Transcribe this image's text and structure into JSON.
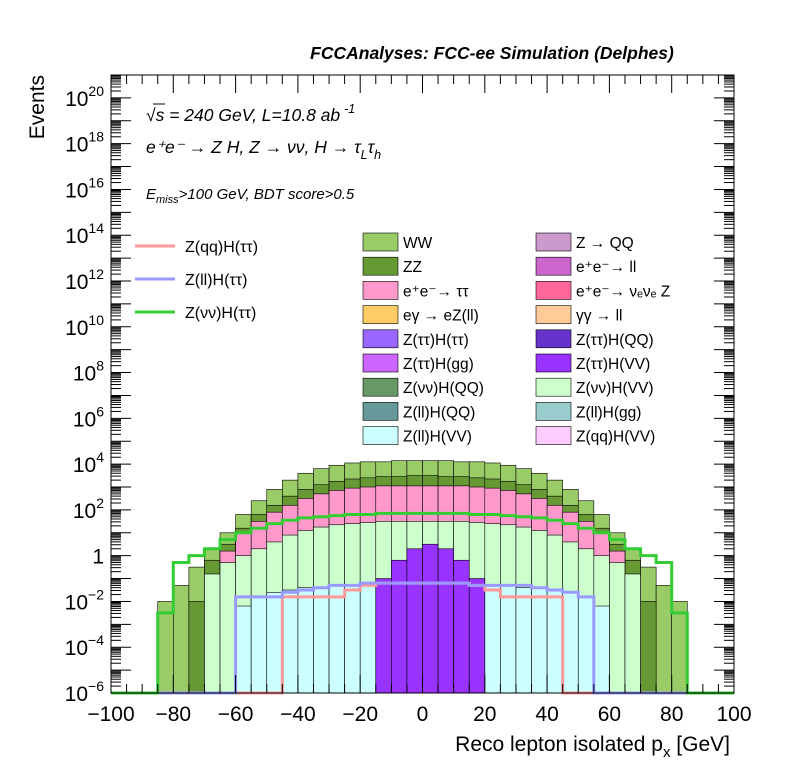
{
  "chart_data": {
    "type": "histogram",
    "title": "FCCAnalyses: FCC-ee Simulation (Delphes)",
    "xlabel": "Reco lepton isolated p",
    "xlabel_sub": "x",
    "xlabel_unit": " [GeV]",
    "ylabel": "Events",
    "xlim": [
      -100,
      100
    ],
    "ylim_log10": [
      -6,
      21
    ],
    "yscale": "log",
    "x_ticks": [
      -100,
      -80,
      -60,
      -40,
      -20,
      0,
      20,
      40,
      60,
      80,
      100
    ],
    "x_tick_labels": [
      "−100",
      "−80",
      "−60",
      "−40",
      "−20",
      "0",
      "20",
      "40",
      "60",
      "80",
      "100"
    ],
    "y_tick_labels": [
      {
        "exp": -6,
        "base": "10",
        "sup": "−6"
      },
      {
        "exp": -4,
        "base": "10",
        "sup": "−4"
      },
      {
        "exp": -2,
        "base": "10",
        "sup": "−2"
      },
      {
        "exp": 0,
        "base": "1",
        "sup": ""
      },
      {
        "exp": 2,
        "base": "10",
        "sup": "2"
      },
      {
        "exp": 4,
        "base": "10",
        "sup": "4"
      },
      {
        "exp": 6,
        "base": "10",
        "sup": "6"
      },
      {
        "exp": 8,
        "base": "10",
        "sup": "8"
      },
      {
        "exp": 10,
        "base": "10",
        "sup": "10"
      },
      {
        "exp": 12,
        "base": "10",
        "sup": "12"
      },
      {
        "exp": 14,
        "base": "10",
        "sup": "14"
      },
      {
        "exp": 16,
        "base": "10",
        "sup": "16"
      },
      {
        "exp": 18,
        "base": "10",
        "sup": "18"
      },
      {
        "exp": 20,
        "base": "10",
        "sup": "20"
      }
    ],
    "annotations": {
      "energy": "√s = 240 GeV, L=10.8 ab",
      "energy_sup": "-1",
      "process": "e⁺e⁻ → Z H, Z → νν, H → τ",
      "process_sub1": "L",
      "process_tau": "τ",
      "process_sub2": "h",
      "cut_prefix": "E",
      "cut_sub": "miss",
      "cut_rest": ">100 GeV, BDT score>0.5"
    },
    "bin_edges_start": -100,
    "bin_width": 5,
    "stack": [
      {
        "name": "WW",
        "color": "#99cc66",
        "log10": [
          -6,
          -6,
          -6,
          -2,
          -1.3,
          -0.5,
          0.3,
          1,
          1.8,
          2.4,
          2.9,
          3.3,
          3.6,
          3.8,
          3.95,
          4.05,
          4.1,
          4.1,
          4.15,
          4.15,
          4.15,
          4.15,
          4.1,
          4.1,
          4.05,
          3.95,
          3.8,
          3.6,
          3.3,
          2.9,
          2.4,
          1.8,
          1,
          0.3,
          -0.5,
          -1.3,
          -2,
          -6,
          -6,
          -6
        ]
      },
      {
        "name": "ZZ",
        "color": "#669933",
        "log10": [
          -6,
          -6,
          -6,
          -6,
          -6,
          -2,
          -0.2,
          0.5,
          1.2,
          1.8,
          2.2,
          2.6,
          2.9,
          3.1,
          3.25,
          3.35,
          3.4,
          3.45,
          3.45,
          3.5,
          3.5,
          3.45,
          3.45,
          3.4,
          3.35,
          3.25,
          3.1,
          2.9,
          2.6,
          2.2,
          1.8,
          1.2,
          0.5,
          -0.2,
          -2,
          -6,
          -6,
          -6,
          -6,
          -6
        ]
      },
      {
        "name": "e⁺e⁻→ ττ",
        "color": "#ff99cc",
        "log10": [
          -6,
          -6,
          -6,
          -6,
          -6,
          -6,
          -1,
          0.2,
          1,
          1.5,
          1.9,
          2.2,
          2.5,
          2.7,
          2.85,
          2.95,
          3,
          3.05,
          3.05,
          3.05,
          3.05,
          3.05,
          3.05,
          3,
          2.95,
          2.85,
          2.7,
          2.5,
          2.2,
          1.9,
          1.5,
          1,
          0.2,
          -1,
          -6,
          -6,
          -6,
          -6,
          -6,
          -6
        ]
      },
      {
        "name": "Z(νν)H(VV)",
        "color": "#ccffcc",
        "log10": [
          -6,
          -6,
          -6,
          -6,
          -6,
          -6,
          -0.8,
          -0.3,
          0,
          0.3,
          0.6,
          0.9,
          1.1,
          1.25,
          1.35,
          1.4,
          1.45,
          1.5,
          1.5,
          1.5,
          1.5,
          1.5,
          1.5,
          1.45,
          1.4,
          1.35,
          1.25,
          1.1,
          0.9,
          0.6,
          0.3,
          0,
          -0.3,
          -0.8,
          -6,
          -6,
          -6,
          -6,
          -6,
          -6
        ]
      },
      {
        "name": "Z(ll)H(VV)",
        "color": "#ccffff",
        "log10": [
          -6,
          -6,
          -6,
          -6,
          -6,
          -6,
          -6,
          -6,
          -2.2,
          -1.8,
          -1.6,
          -1.5,
          -1.4,
          -1.4,
          -1.3,
          -1.3,
          -1.3,
          -1.25,
          -1.25,
          -1.25,
          -1.25,
          -1.25,
          -1.25,
          -1.3,
          -1.3,
          -1.3,
          -1.4,
          -1.4,
          -1.5,
          -1.6,
          -1.8,
          -2.2,
          -6,
          -6,
          -6,
          -6,
          -6,
          -6,
          -6,
          -6
        ]
      },
      {
        "name": "Z(ττ)H(VV)",
        "color": "#9933ff",
        "log10": [
          -6,
          -6,
          -6,
          -6,
          -6,
          -6,
          -6,
          -6,
          -6,
          -6,
          -6,
          -6,
          -6,
          -6,
          -6,
          -6,
          -6,
          -1,
          -0.2,
          0.3,
          0.5,
          0.3,
          -0.2,
          -1,
          -6,
          -6,
          -6,
          -6,
          -6,
          -6,
          -6,
          -6,
          -6,
          -6,
          -6,
          -6,
          -6,
          -6,
          -6,
          -6
        ]
      },
      {
        "name": "Z(ττ)H(QQ)",
        "color": "#6633cc",
        "log10": [
          -6,
          -6,
          -6,
          -6,
          -6,
          -6,
          -6,
          -6,
          -6,
          -6,
          -6,
          -6,
          -6,
          -6,
          -6,
          -6,
          -6,
          -6,
          -6,
          -6,
          -6,
          -6,
          -6,
          -6,
          -6,
          -6,
          -6,
          -6,
          -6,
          -6,
          -6,
          -6,
          -6,
          -6,
          -6,
          -6,
          -6,
          -6,
          -6,
          -6
        ]
      }
    ],
    "legend": [
      {
        "name": "WW",
        "color": "#99cc66"
      },
      {
        "name": "Z → QQ",
        "color": "#cc99cc"
      },
      {
        "name": "ZZ",
        "color": "#669933"
      },
      {
        "name": "e⁺e⁻→ ll",
        "color": "#cc66cc"
      },
      {
        "name": "e⁺e⁻→ ττ",
        "color": "#ff99cc"
      },
      {
        "name": "e⁺e⁻→ νₑνₑ Z",
        "color": "#ff6699"
      },
      {
        "name": "eγ → eZ(ll)",
        "color": "#ffcc66"
      },
      {
        "name": "γγ → ll",
        "color": "#ffcc99"
      },
      {
        "name": "Z(ττ)H(ττ)",
        "color": "#9966ff"
      },
      {
        "name": "Z(ττ)H(QQ)",
        "color": "#6633cc"
      },
      {
        "name": "Z(ττ)H(gg)",
        "color": "#cc66ff"
      },
      {
        "name": "Z(ττ)H(VV)",
        "color": "#9933ff"
      },
      {
        "name": "Z(νν)H(QQ)",
        "color": "#669966"
      },
      {
        "name": "Z(νν)H(VV)",
        "color": "#ccffcc"
      },
      {
        "name": "Z(ll)H(QQ)",
        "color": "#669999"
      },
      {
        "name": "Z(ll)H(gg)",
        "color": "#99cccc"
      },
      {
        "name": "Z(ll)H(VV)",
        "color": "#ccffff"
      },
      {
        "name": "Z(qq)H(VV)",
        "color": "#ffccff"
      }
    ],
    "signals": [
      {
        "name": "Z(qq)H(ττ)",
        "color": "#ff9999",
        "log10": [
          -6,
          -6,
          -6,
          -6,
          -6,
          -6,
          -6,
          -6,
          -6,
          -6,
          -6,
          -1.8,
          -1.8,
          -1.8,
          -1.8,
          -1.5,
          -1.3,
          -1.2,
          -1.2,
          -1.2,
          -1.2,
          -1.2,
          -1.2,
          -1.3,
          -1.5,
          -1.8,
          -1.8,
          -1.8,
          -1.8,
          -6,
          -6,
          -6,
          -6,
          -6,
          -6,
          -6,
          -6,
          -6,
          -6,
          -6
        ]
      },
      {
        "name": "Z(ll)H(ττ)",
        "color": "#9999ff",
        "log10": [
          -6,
          -6,
          -6,
          -6,
          -6,
          -6,
          -6,
          -6,
          -1.8,
          -1.8,
          -1.8,
          -1.6,
          -1.5,
          -1.4,
          -1.3,
          -1.3,
          -1.2,
          -1.2,
          -1.2,
          -1.2,
          -1.2,
          -1.2,
          -1.2,
          -1.3,
          -1.3,
          -1.3,
          -1.3,
          -1.4,
          -1.5,
          -1.6,
          -1.8,
          -6,
          -6,
          -6,
          -6,
          -6,
          -6,
          -6,
          -6,
          -6
        ]
      },
      {
        "name": "Z(νν)H(ττ)",
        "color": "#33cc33",
        "log10": [
          -6,
          -6,
          -6,
          -2.5,
          -0.3,
          0,
          0.3,
          0.7,
          1,
          1.2,
          1.4,
          1.55,
          1.65,
          1.7,
          1.75,
          1.8,
          1.8,
          1.85,
          1.85,
          1.85,
          1.85,
          1.85,
          1.85,
          1.8,
          1.8,
          1.75,
          1.7,
          1.65,
          1.55,
          1.4,
          1.2,
          1,
          0.7,
          0.3,
          0,
          -0.3,
          -2.5,
          -6,
          -6,
          -6
        ]
      }
    ]
  }
}
